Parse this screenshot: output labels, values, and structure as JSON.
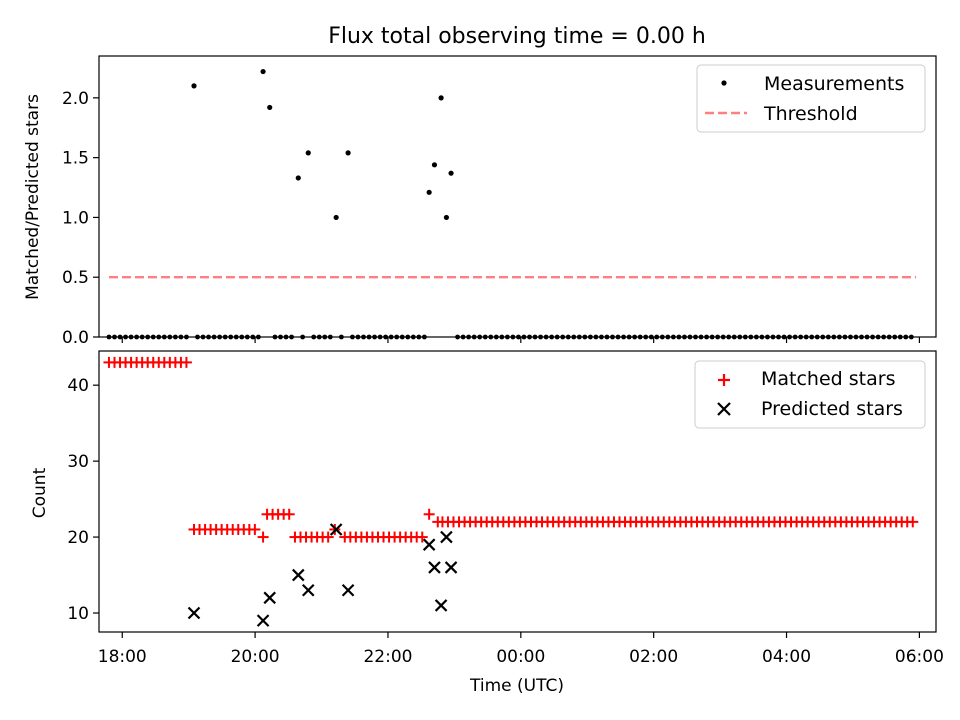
{
  "chart_data": [
    {
      "type": "scatter",
      "title": "Flux total observing time = 0.00 h",
      "xlabel": "",
      "ylabel": "Matched/Predicted stars",
      "xlim": [
        -0.35,
        12.25
      ],
      "ylim": [
        0,
        2.35
      ],
      "yticks": [
        0.0,
        0.5,
        1.0,
        1.5,
        2.0
      ],
      "ytick_labels": [
        "0.0",
        "0.5",
        "1.0",
        "1.5",
        "2.0"
      ],
      "xticks": [
        0,
        2,
        4,
        6,
        8,
        10,
        12
      ],
      "grid": false,
      "legend_position": "top-right",
      "series": [
        {
          "name": "Measurements",
          "marker": "dot",
          "color": "#000000",
          "points": [
            [
              1.08,
              2.1
            ],
            [
              2.12,
              2.22
            ],
            [
              2.22,
              1.92
            ],
            [
              2.65,
              1.33
            ],
            [
              2.8,
              1.54
            ],
            [
              3.22,
              1.0
            ],
            [
              3.4,
              1.54
            ],
            [
              4.62,
              1.21
            ],
            [
              4.7,
              1.44
            ],
            [
              4.8,
              2.0
            ],
            [
              4.88,
              1.0
            ],
            [
              4.95,
              1.37
            ]
          ],
          "zero_range": [
            -0.2,
            11.95
          ],
          "zero_step": 0.0833
        },
        {
          "name": "Threshold",
          "style": "dashed",
          "color": "#ff7f7f",
          "x": [
            -0.2,
            11.95
          ],
          "y": [
            0.5,
            0.5
          ]
        }
      ]
    },
    {
      "type": "scatter",
      "title": "",
      "xlabel": "Time (UTC)",
      "ylabel": "Count",
      "xlim": [
        -0.35,
        12.25
      ],
      "ylim": [
        7.5,
        44.5
      ],
      "yticks": [
        10,
        20,
        30,
        40
      ],
      "ytick_labels": [
        "10",
        "20",
        "30",
        "40"
      ],
      "xticks": [
        0,
        2,
        4,
        6,
        8,
        10,
        12
      ],
      "xtick_labels": [
        "18:00",
        "20:00",
        "22:00",
        "00:00",
        "02:00",
        "04:00",
        "06:00"
      ],
      "grid": false,
      "legend_position": "top-right",
      "series": [
        {
          "name": "Matched stars",
          "marker": "plus",
          "color": "#ff0000",
          "segments": [
            {
              "x": [
                -0.2,
                1.0
              ],
              "y": 43
            },
            {
              "x": [
                1.08,
                2.05
              ],
              "y": 21
            },
            {
              "x": [
                2.12,
                2.12
              ],
              "y": 20
            },
            {
              "x": [
                2.18,
                2.55
              ],
              "y": 23
            },
            {
              "x": [
                2.6,
                3.12
              ],
              "y": 20
            },
            {
              "x": [
                3.2,
                3.28
              ],
              "y": 21
            },
            {
              "x": [
                3.35,
                4.55
              ],
              "y": 20
            },
            {
              "x": [
                4.62,
                4.7
              ],
              "y": 23
            },
            {
              "x": [
                4.75,
                4.75
              ],
              "y": 22
            },
            {
              "x": [
                4.82,
                11.95
              ],
              "y": 22
            }
          ],
          "step": 0.0833
        },
        {
          "name": "Predicted stars",
          "marker": "x",
          "color": "#000000",
          "points": [
            [
              1.08,
              10
            ],
            [
              2.12,
              9
            ],
            [
              2.22,
              12
            ],
            [
              2.65,
              15
            ],
            [
              2.8,
              13
            ],
            [
              3.22,
              21
            ],
            [
              3.4,
              13
            ],
            [
              4.62,
              19
            ],
            [
              4.7,
              16
            ],
            [
              4.8,
              11
            ],
            [
              4.88,
              20
            ],
            [
              4.95,
              16
            ]
          ]
        }
      ]
    }
  ]
}
